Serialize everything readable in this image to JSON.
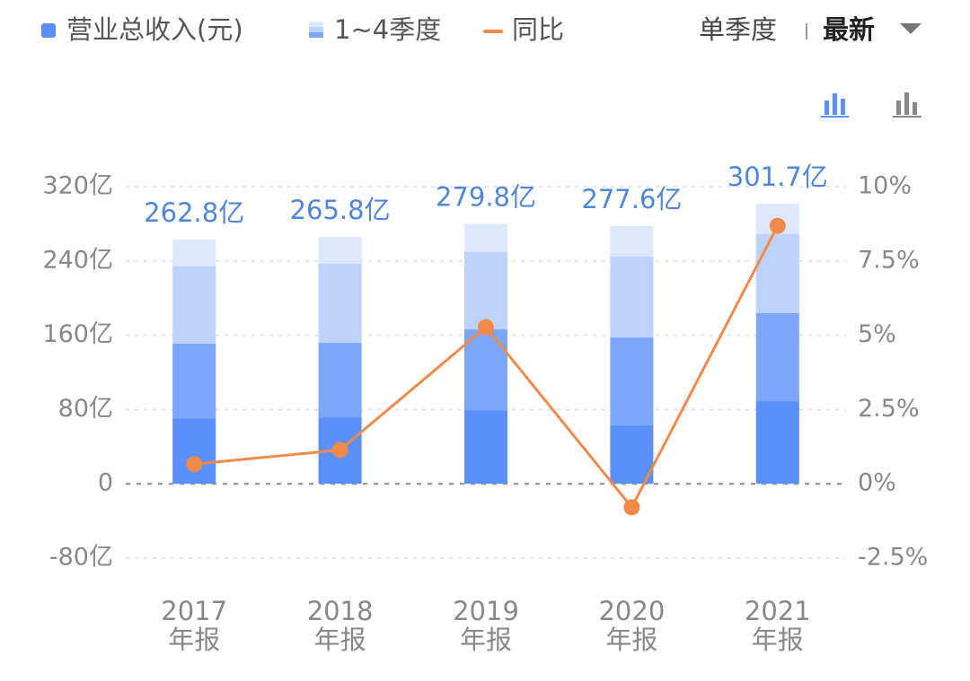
{
  "chart_data": {
    "type": "stacked-bar-line",
    "x": [
      "2017",
      "2018",
      "2019",
      "2020",
      "2021"
    ],
    "x_suffix": "年报",
    "series": [
      {
        "name": "营业总收入(元)",
        "color": "#dde8fb",
        "legend_color": "#5b8ff9",
        "values": [
          262.8,
          265.8,
          279.8,
          277.6,
          301.7
        ],
        "value_labels": [
          "262.8亿",
          "265.8亿",
          "279.8亿",
          "277.6亿",
          "301.7亿"
        ]
      },
      {
        "name": "1~4季度",
        "colors": [
          "#5b8ff9",
          "#7ba6fa",
          "#bdd3fc"
        ],
        "stack": [
          [
            70.6,
            71.6,
            79.3,
            62.9,
            89.0
          ],
          [
            80.3,
            80.2,
            87.0,
            94.7,
            94.8
          ],
          [
            83.1,
            85.1,
            83.2,
            87.1,
            85.1
          ]
        ]
      },
      {
        "name": "同比",
        "color": "#f08a4b",
        "axis": "y2",
        "values": [
          0.66,
          1.14,
          5.27,
          -0.79,
          8.68
        ]
      }
    ],
    "ylim": [
      -80,
      320
    ],
    "yticks": [
      {
        "value": -80,
        "label": "-80亿"
      },
      0,
      {
        "value": 80,
        "label": "80亿"
      },
      {
        "value": 160,
        "label": "160亿"
      },
      {
        "value": 240,
        "label": "240亿"
      },
      {
        "value": 320,
        "label": "320亿"
      }
    ],
    "y2lim": [
      -2.5,
      10
    ],
    "y2ticks": [
      {
        "value": -2.5,
        "label": "-2.5%"
      },
      {
        "value": 0,
        "label": "0%"
      },
      {
        "value": 2.5,
        "label": "2.5%"
      },
      {
        "value": 5,
        "label": "5%"
      },
      {
        "value": 7.5,
        "label": "7.5%"
      },
      {
        "value": 10,
        "label": "10%"
      }
    ],
    "grid": true
  },
  "toggle": {
    "left": "单季度",
    "right": "最新"
  }
}
